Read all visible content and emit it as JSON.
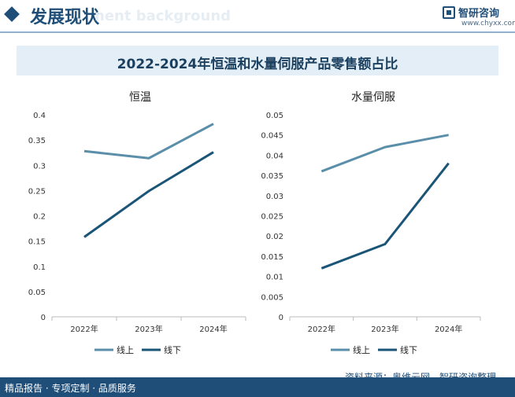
{
  "header": {
    "title": "发展现状",
    "watermark": "nent background",
    "logo_name": "智研咨询",
    "logo_url": "www.chyxx.com"
  },
  "title": "2022-2024年恒温和水量伺服产品零售额占比",
  "footer": {
    "left": "精品报告 · 专项定制 · 品质服务",
    "source": "资料来源：奥维云网、智研咨询整理"
  },
  "colors": {
    "online": "#5b8ea8",
    "offline": "#1a5577",
    "brand": "#1f4e79"
  },
  "chart_data": [
    {
      "type": "line",
      "title": "恒温",
      "categories": [
        "2022年",
        "2023年",
        "2024年"
      ],
      "ylim": [
        0,
        0.4
      ],
      "yticks": [
        0,
        0.05,
        0.1,
        0.15,
        0.2,
        0.25,
        0.3,
        0.35,
        0.4
      ],
      "ytick_labels": [
        "0",
        "0.05",
        "0.1",
        "0.15",
        "0.2",
        "0.25",
        "0.3",
        "0.35",
        "0.4"
      ],
      "series": [
        {
          "name": "线上",
          "values": [
            0.328,
            0.314,
            0.382
          ]
        },
        {
          "name": "线下",
          "values": [
            0.158,
            0.249,
            0.326
          ]
        }
      ],
      "legend_position": "bottom-left",
      "grid": false
    },
    {
      "type": "line",
      "title": "水量伺服",
      "categories": [
        "2022年",
        "2023年",
        "2024年"
      ],
      "ylim": [
        0,
        0.05
      ],
      "yticks": [
        0,
        0.005,
        0.01,
        0.015,
        0.02,
        0.025,
        0.03,
        0.035,
        0.04,
        0.045,
        0.05
      ],
      "ytick_labels": [
        "0",
        "0.005",
        "0.01",
        "0.015",
        "0.02",
        "0.025",
        "0.03",
        "0.035",
        "0.04",
        "0.045",
        "0.05"
      ],
      "series": [
        {
          "name": "线上",
          "values": [
            0.036,
            0.042,
            0.045
          ]
        },
        {
          "name": "线下",
          "values": [
            0.012,
            0.018,
            0.038
          ]
        }
      ],
      "legend_position": "bottom-left",
      "grid": false
    }
  ]
}
